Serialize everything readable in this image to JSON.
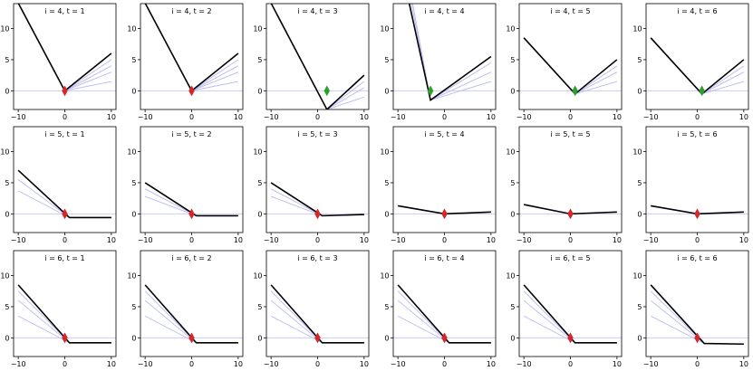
{
  "chart_data": {
    "type": "line",
    "layout": {
      "rows": 3,
      "cols": 6
    },
    "xlim": [
      -11,
      11
    ],
    "ylim": [
      -3,
      14
    ],
    "xticks": [
      -10,
      0,
      10
    ],
    "yticks": [
      0,
      5,
      10
    ],
    "colors": {
      "main": "#000000",
      "history": "#b9b9f2",
      "zero": "#c4c4f4",
      "red_marker": "#d62728",
      "green_marker": "#2ca02c"
    },
    "panels": [
      {
        "title": "i = 4, t = 1",
        "hx": 0.0,
        "main": [
          [
            -11,
            15.5
          ],
          [
            0,
            0
          ],
          [
            10,
            6
          ]
        ],
        "history": [
          [
            [
              -11,
              15.5
            ],
            [
              0,
              0
            ],
            [
              10,
              5
            ]
          ],
          [
            [
              -11,
              15.5
            ],
            [
              0,
              0
            ],
            [
              10,
              4
            ]
          ],
          [
            [
              -11,
              15.5
            ],
            [
              0,
              0
            ],
            [
              10,
              3
            ]
          ],
          [
            [
              -11,
              15.5
            ],
            [
              0,
              0
            ],
            [
              10,
              1.5
            ]
          ]
        ],
        "markers": [
          {
            "x": 0,
            "y": 0,
            "color": "red"
          }
        ]
      },
      {
        "title": "i = 4, t = 2",
        "hx": 0.0,
        "main": [
          [
            -11,
            15.5
          ],
          [
            0,
            0
          ],
          [
            10,
            6
          ]
        ],
        "history": [
          [
            [
              -11,
              15.5
            ],
            [
              0,
              0
            ],
            [
              10,
              5
            ]
          ],
          [
            [
              -11,
              15.5
            ],
            [
              0,
              0
            ],
            [
              10,
              4
            ]
          ],
          [
            [
              -11,
              15.5
            ],
            [
              0,
              0
            ],
            [
              10,
              3
            ]
          ],
          [
            [
              -11,
              15.5
            ],
            [
              0,
              0
            ],
            [
              10,
              1.5
            ]
          ]
        ],
        "markers": [
          {
            "x": 0,
            "y": 0,
            "color": "red"
          }
        ]
      },
      {
        "title": "i = 4, t = 3",
        "hx": 2.0,
        "main": [
          [
            -11,
            15.5
          ],
          [
            2,
            -3
          ],
          [
            10,
            2.5
          ]
        ],
        "history": [
          [
            [
              -11,
              15.5
            ],
            [
              2,
              -3
            ],
            [
              10,
              1.5
            ]
          ],
          [
            [
              -11,
              15.5
            ],
            [
              2,
              -3
            ],
            [
              10,
              0.5
            ]
          ],
          [
            [
              -11,
              15.5
            ],
            [
              2,
              -3
            ],
            [
              10,
              -1
            ]
          ]
        ],
        "markers": [
          {
            "x": 2,
            "y": 0,
            "color": "green"
          }
        ]
      },
      {
        "title": "i = 4, t = 4",
        "hx": -3.0,
        "main": [
          [
            -8,
            15.5
          ],
          [
            -3,
            -1.5
          ],
          [
            10,
            5.5
          ]
        ],
        "history": [
          [
            [
              -8,
              15.5
            ],
            [
              -3,
              -1.5
            ],
            [
              10,
              4.5
            ]
          ],
          [
            [
              -7.5,
              15.5
            ],
            [
              -3,
              -1.5
            ],
            [
              10,
              3
            ]
          ],
          [
            [
              -7.2,
              15.5
            ],
            [
              -3,
              -1.5
            ],
            [
              10,
              1.5
            ]
          ]
        ],
        "markers": [
          {
            "x": -3,
            "y": 0,
            "color": "green"
          }
        ]
      },
      {
        "title": "i = 4, t = 5",
        "hx": 1.0,
        "main": [
          [
            -10,
            8.5
          ],
          [
            1,
            -0.5
          ],
          [
            10,
            5
          ]
        ],
        "history": [
          [
            [
              -10,
              8.5
            ],
            [
              1,
              -0.5
            ],
            [
              10,
              4
            ]
          ],
          [
            [
              -10,
              8.5
            ],
            [
              1,
              -0.5
            ],
            [
              10,
              3
            ]
          ],
          [
            [
              -10,
              8.5
            ],
            [
              1,
              -0.5
            ],
            [
              10,
              1.5
            ]
          ]
        ],
        "markers": [
          {
            "x": 1,
            "y": 0,
            "color": "green"
          }
        ]
      },
      {
        "title": "i = 4, t = 6",
        "hx": 1.0,
        "main": [
          [
            -10,
            8.5
          ],
          [
            1,
            -0.5
          ],
          [
            10,
            5
          ]
        ],
        "history": [
          [
            [
              -10,
              8.5
            ],
            [
              1,
              -0.5
            ],
            [
              10,
              4
            ]
          ],
          [
            [
              -10,
              8.5
            ],
            [
              1,
              -0.5
            ],
            [
              10,
              3
            ]
          ],
          [
            [
              -10,
              8.5
            ],
            [
              1,
              -0.5
            ],
            [
              10,
              1.5
            ]
          ]
        ],
        "markers": [
          {
            "x": 1,
            "y": 0,
            "color": "green"
          }
        ]
      },
      {
        "title": "i = 5, t = 1",
        "hx": 1.0,
        "main": [
          [
            -10,
            7
          ],
          [
            1,
            -0.6
          ],
          [
            10,
            -0.6
          ]
        ],
        "history": [
          [
            [
              -10,
              5.5
            ],
            [
              1,
              -0.6
            ],
            [
              10,
              -0.6
            ]
          ],
          [
            [
              -10,
              3.7
            ],
            [
              1,
              -0.6
            ],
            [
              10,
              -0.6
            ]
          ]
        ],
        "markers": [
          {
            "x": 0,
            "y": 0,
            "color": "red"
          }
        ]
      },
      {
        "title": "i = 5, t = 2",
        "hx": 1.0,
        "main": [
          [
            -10,
            5
          ],
          [
            1,
            -0.3
          ],
          [
            10,
            -0.3
          ]
        ],
        "history": [
          [
            [
              -10,
              4
            ],
            [
              1,
              -0.3
            ],
            [
              10,
              -0.3
            ]
          ],
          [
            [
              -10,
              2.8
            ],
            [
              1,
              -0.3
            ],
            [
              10,
              -0.3
            ]
          ]
        ],
        "markers": [
          {
            "x": 0,
            "y": 0,
            "color": "red"
          }
        ]
      },
      {
        "title": "i = 5, t = 3",
        "hx": 1.0,
        "main": [
          [
            -10,
            5
          ],
          [
            1,
            -0.3
          ],
          [
            10,
            -0.1
          ]
        ],
        "history": [
          [
            [
              -10,
              4
            ],
            [
              1,
              -0.3
            ],
            [
              10,
              -0.1
            ]
          ],
          [
            [
              -10,
              2.8
            ],
            [
              1,
              -0.3
            ],
            [
              10,
              -0.1
            ]
          ]
        ],
        "markers": [
          {
            "x": 0,
            "y": 0,
            "color": "red"
          }
        ]
      },
      {
        "title": "i = 5, t = 4",
        "hx": 0.0,
        "main": [
          [
            -10,
            1.3
          ],
          [
            0,
            0
          ],
          [
            10,
            0.3
          ]
        ],
        "history": [],
        "markers": [
          {
            "x": 0,
            "y": 0,
            "color": "red"
          }
        ]
      },
      {
        "title": "i = 5, t = 5",
        "hx": 0.0,
        "main": [
          [
            -10,
            1.5
          ],
          [
            0,
            0
          ],
          [
            10,
            0.3
          ]
        ],
        "history": [],
        "markers": [
          {
            "x": 0,
            "y": 0,
            "color": "red"
          }
        ]
      },
      {
        "title": "i = 5, t = 6",
        "hx": 0.0,
        "main": [
          [
            -10,
            1.3
          ],
          [
            0,
            0
          ],
          [
            10,
            0.3
          ]
        ],
        "history": [],
        "markers": [
          {
            "x": 0,
            "y": 0,
            "color": "red"
          }
        ]
      },
      {
        "title": "i = 6, t = 1",
        "hx": 1.0,
        "main": [
          [
            -10,
            8.5
          ],
          [
            1,
            -0.8
          ],
          [
            10,
            -0.8
          ]
        ],
        "history": [
          [
            [
              -10,
              7.5
            ],
            [
              1,
              -0.8
            ],
            [
              10,
              -0.8
            ]
          ],
          [
            [
              -10,
              6
            ],
            [
              1,
              -0.8
            ],
            [
              10,
              -0.8
            ]
          ],
          [
            [
              -10,
              3.5
            ],
            [
              1,
              -0.8
            ],
            [
              10,
              -0.8
            ]
          ]
        ],
        "markers": [
          {
            "x": 0,
            "y": 0,
            "color": "red"
          }
        ]
      },
      {
        "title": "i = 6, t = 2",
        "hx": 1.0,
        "main": [
          [
            -10,
            8.5
          ],
          [
            1,
            -0.8
          ],
          [
            10,
            -0.8
          ]
        ],
        "history": [
          [
            [
              -10,
              7.5
            ],
            [
              1,
              -0.8
            ],
            [
              10,
              -0.8
            ]
          ],
          [
            [
              -10,
              6
            ],
            [
              1,
              -0.8
            ],
            [
              10,
              -0.8
            ]
          ],
          [
            [
              -10,
              3.5
            ],
            [
              1,
              -0.8
            ],
            [
              10,
              -0.8
            ]
          ]
        ],
        "markers": [
          {
            "x": 0,
            "y": 0,
            "color": "red"
          }
        ]
      },
      {
        "title": "i = 6, t = 3",
        "hx": 1.0,
        "main": [
          [
            -10,
            8.5
          ],
          [
            1,
            -0.8
          ],
          [
            10,
            -0.8
          ]
        ],
        "history": [
          [
            [
              -10,
              7.5
            ],
            [
              1,
              -0.8
            ],
            [
              10,
              -0.8
            ]
          ],
          [
            [
              -10,
              6
            ],
            [
              1,
              -0.8
            ],
            [
              10,
              -0.8
            ]
          ],
          [
            [
              -10,
              3.5
            ],
            [
              1,
              -0.8
            ],
            [
              10,
              -0.8
            ]
          ]
        ],
        "markers": [
          {
            "x": 0,
            "y": 0,
            "color": "red"
          }
        ]
      },
      {
        "title": "i = 6, t = 4",
        "hx": 1.0,
        "main": [
          [
            -10,
            8.5
          ],
          [
            1,
            -0.8
          ],
          [
            10,
            -0.8
          ]
        ],
        "history": [
          [
            [
              -10,
              7.5
            ],
            [
              1,
              -0.8
            ],
            [
              10,
              -0.8
            ]
          ],
          [
            [
              -10,
              6
            ],
            [
              1,
              -0.8
            ],
            [
              10,
              -0.8
            ]
          ],
          [
            [
              -10,
              3.5
            ],
            [
              1,
              -0.8
            ],
            [
              10,
              -0.8
            ]
          ]
        ],
        "markers": [
          {
            "x": 0,
            "y": 0,
            "color": "red"
          }
        ]
      },
      {
        "title": "i = 6, t = 5",
        "hx": 1.0,
        "main": [
          [
            -10,
            8.5
          ],
          [
            1,
            -0.8
          ],
          [
            10,
            -0.8
          ]
        ],
        "history": [
          [
            [
              -10,
              7.5
            ],
            [
              1,
              -0.8
            ],
            [
              10,
              -0.8
            ]
          ],
          [
            [
              -10,
              6
            ],
            [
              1,
              -0.8
            ],
            [
              10,
              -0.8
            ]
          ],
          [
            [
              -10,
              3.5
            ],
            [
              1,
              -0.8
            ],
            [
              10,
              -0.8
            ]
          ]
        ],
        "markers": [
          {
            "x": 0,
            "y": 0,
            "color": "red"
          }
        ]
      },
      {
        "title": "i = 6, t = 6",
        "hx": 1.5,
        "main": [
          [
            -10,
            8.5
          ],
          [
            1.5,
            -0.9
          ],
          [
            10,
            -1
          ]
        ],
        "history": [
          [
            [
              -10,
              7.5
            ],
            [
              1.5,
              -0.9
            ],
            [
              10,
              -1
            ]
          ],
          [
            [
              -10,
              6
            ],
            [
              1.5,
              -0.9
            ],
            [
              10,
              -1
            ]
          ],
          [
            [
              -10,
              3.5
            ],
            [
              1.5,
              -0.9
            ],
            [
              10,
              -1
            ]
          ]
        ],
        "markers": [
          {
            "x": 0,
            "y": 0,
            "color": "red"
          }
        ]
      }
    ]
  }
}
